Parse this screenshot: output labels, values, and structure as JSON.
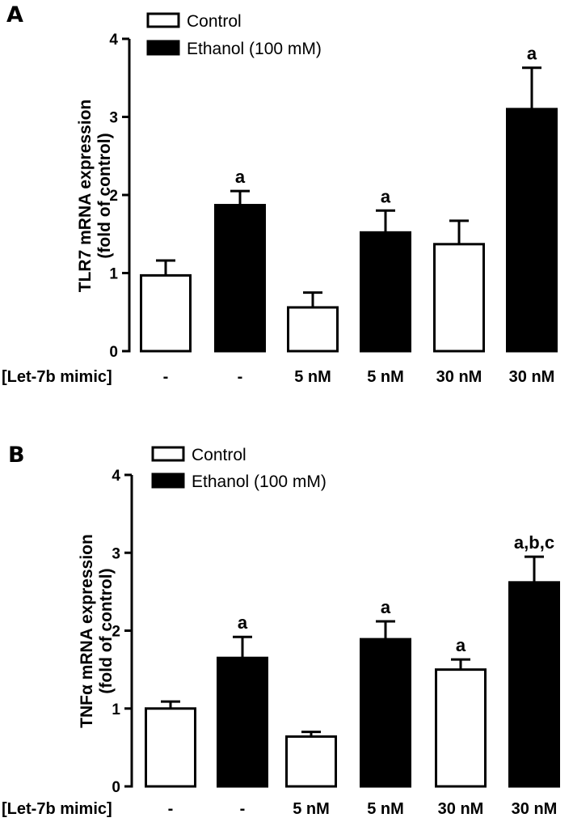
{
  "chart_data": [
    {
      "type": "bar",
      "panel": "A",
      "ylabel_line1": "TLR7 mRNA expression",
      "ylabel_line2": "(fold of control)",
      "ylim": [
        0,
        4
      ],
      "yticks": [
        "0",
        "1",
        "2",
        "3",
        "4"
      ],
      "row_label": "[Let-7b mimic]",
      "categories": [
        "-",
        "-",
        "5 nM",
        "5 nM",
        "30 nM",
        "30 nM"
      ],
      "groups": [
        "Control",
        "Ethanol",
        "Control",
        "Ethanol",
        "Control",
        "Ethanol"
      ],
      "values": [
        0.97,
        1.87,
        0.56,
        1.52,
        1.37,
        3.1
      ],
      "errors": [
        0.19,
        0.18,
        0.19,
        0.28,
        0.3,
        0.53
      ],
      "annotations": [
        "",
        "a",
        "",
        "a",
        "",
        "a"
      ],
      "legend": [
        "Control",
        "Ethanol (100 mM)"
      ]
    },
    {
      "type": "bar",
      "panel": "B",
      "ylabel_line1": "TNFα mRNA expression",
      "ylabel_line2": "(fold of control)",
      "ylim": [
        0,
        4
      ],
      "yticks": [
        "0",
        "1",
        "2",
        "3",
        "4"
      ],
      "row_label": "[Let-7b mimic]",
      "categories": [
        "-",
        "-",
        "5 nM",
        "5 nM",
        "30 nM",
        "30 nM"
      ],
      "groups": [
        "Control",
        "Ethanol",
        "Control",
        "Ethanol",
        "Control",
        "Ethanol"
      ],
      "values": [
        1.0,
        1.65,
        0.64,
        1.89,
        1.5,
        2.62
      ],
      "errors": [
        0.09,
        0.27,
        0.06,
        0.23,
        0.13,
        0.33
      ],
      "annotations": [
        "",
        "a",
        "",
        "a",
        "a",
        "a,b,c"
      ],
      "legend": [
        "Control",
        "Ethanol (100 mM)"
      ]
    }
  ],
  "colors": {
    "control_fill": "#ffffff",
    "ethanol_fill": "#000000",
    "stroke": "#000000"
  }
}
